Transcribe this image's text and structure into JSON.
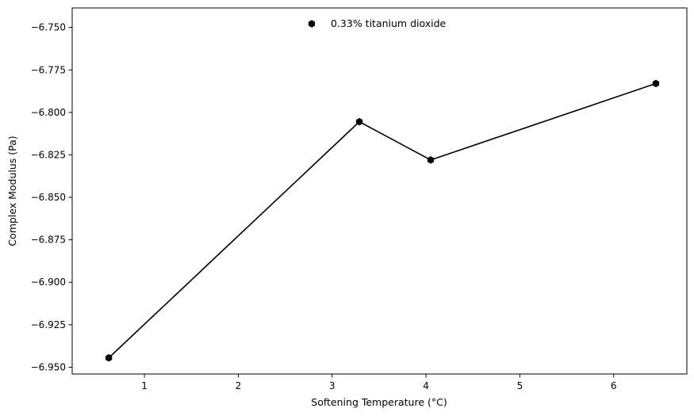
{
  "chart_data": {
    "type": "line",
    "title": "",
    "xlabel": "Softening Temperature (°C)",
    "ylabel": "Complex Modulus (Pa)",
    "xlim": [
      0.23,
      6.78
    ],
    "ylim": [
      -6.954,
      -6.7385
    ],
    "xticks": [
      1,
      2,
      3,
      4,
      5,
      6
    ],
    "xtick_labels": [
      "1",
      "2",
      "3",
      "4",
      "5",
      "6"
    ],
    "yticks": [
      -6.95,
      -6.925,
      -6.9,
      -6.875,
      -6.85,
      -6.825,
      -6.8,
      -6.775,
      -6.75
    ],
    "ytick_labels": [
      "−6.950",
      "−6.925",
      "−6.900",
      "−6.875",
      "−6.850",
      "−6.825",
      "−6.800",
      "−6.775",
      "−6.750"
    ],
    "grid": false,
    "legend_position": "upper center",
    "series": [
      {
        "name": "0.33% titanium dioxide",
        "color": "#000000",
        "marker": "hexagon",
        "x": [
          0.62,
          3.29,
          4.05,
          6.45
        ],
        "y": [
          -6.9445,
          -6.8055,
          -6.828,
          -6.783
        ]
      }
    ]
  }
}
